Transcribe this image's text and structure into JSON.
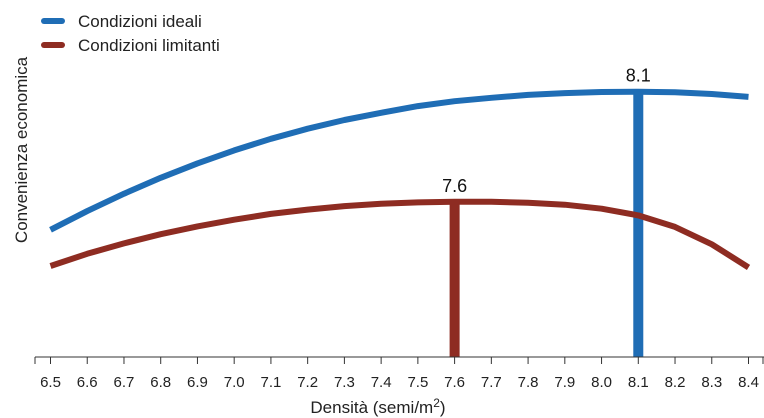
{
  "chart_data": {
    "type": "line",
    "title": "",
    "xlabel": "Densità (semi/m",
    "xlabel_sup": "2",
    "xlabel_close": ")",
    "ylabel": "Convenienza economica",
    "xlim": [
      6.5,
      8.4
    ],
    "ylim": [
      0,
      1
    ],
    "grid": false,
    "legend_position": "top-left",
    "x": [
      6.5,
      6.6,
      6.7,
      6.8,
      6.9,
      7.0,
      7.1,
      7.2,
      7.3,
      7.4,
      7.5,
      7.6,
      7.7,
      7.8,
      7.9,
      8.0,
      8.1,
      8.2,
      8.3,
      8.4
    ],
    "tick_labels": [
      "6.5",
      "6.6",
      "6.7",
      "6.8",
      "6.9",
      "7.0",
      "7.1",
      "7.2",
      "7.3",
      "7.4",
      "7.5",
      "7.6",
      "7.7",
      "7.8",
      "7.9",
      "8.0",
      "8.1",
      "8.2",
      "8.3",
      "8.4"
    ],
    "series": [
      {
        "name": "Condizioni ideali",
        "color": "#1f6db5",
        "values": [
          0.44,
          0.505,
          0.565,
          0.62,
          0.67,
          0.715,
          0.755,
          0.79,
          0.82,
          0.845,
          0.868,
          0.885,
          0.897,
          0.907,
          0.913,
          0.917,
          0.918,
          0.916,
          0.91,
          0.9
        ],
        "peak": {
          "x": 8.1,
          "label": "8.1"
        }
      },
      {
        "name": "Condizioni limitanti",
        "color": "#8e2c22",
        "values": [
          0.315,
          0.357,
          0.393,
          0.425,
          0.452,
          0.475,
          0.495,
          0.51,
          0.522,
          0.53,
          0.535,
          0.537,
          0.537,
          0.534,
          0.527,
          0.513,
          0.49,
          0.45,
          0.39,
          0.31
        ],
        "peak": {
          "x": 7.6,
          "label": "7.6"
        }
      }
    ]
  }
}
